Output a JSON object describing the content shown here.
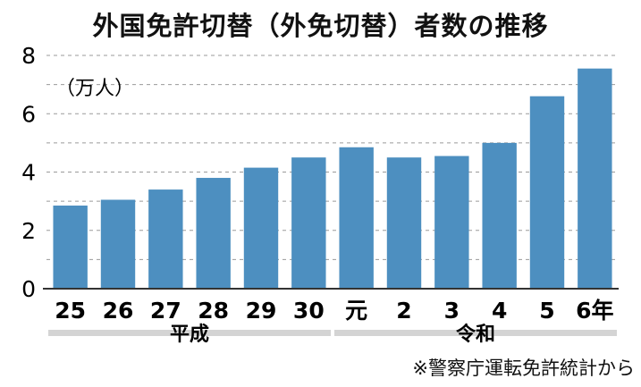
{
  "chart_data": {
    "type": "bar",
    "title": "外国免許切替（外免切替）者数の推移",
    "unit_label": "（万人）",
    "categories": [
      "25",
      "26",
      "27",
      "28",
      "29",
      "30",
      "元",
      "2",
      "3",
      "4",
      "5",
      "6年"
    ],
    "values": [
      2.85,
      3.05,
      3.4,
      3.8,
      4.15,
      4.5,
      4.85,
      4.5,
      4.55,
      5.0,
      6.6,
      7.55
    ],
    "ylim": [
      0,
      8
    ],
    "y_ticks": [
      "0",
      "2",
      "4",
      "6",
      "8"
    ],
    "grid": "dashed-horizontal",
    "eras": [
      {
        "label": "平成",
        "start": 0,
        "end": 5
      },
      {
        "label": "令和",
        "start": 6,
        "end": 11
      }
    ],
    "bar_color": "#4d8fc0",
    "source": "※警察庁運転免許統計から"
  }
}
